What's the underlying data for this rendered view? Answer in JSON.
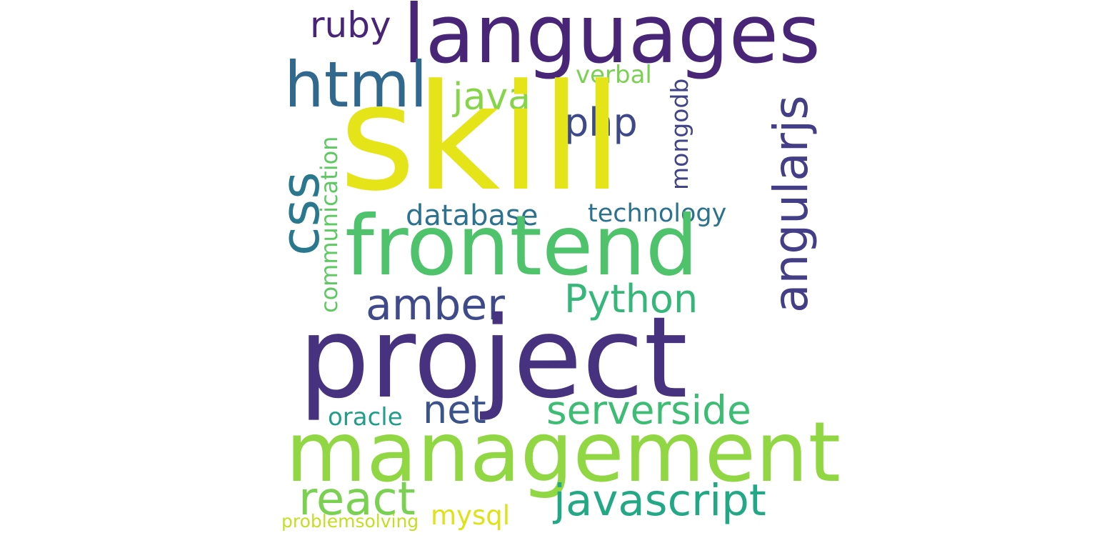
{
  "words": {
    "skill": {
      "text": "skill",
      "color": "#e5e419",
      "orientation": "horizontal"
    },
    "languages": {
      "text": "languages",
      "color": "#482576",
      "orientation": "horizontal"
    },
    "ruby": {
      "text": "ruby",
      "color": "#482576",
      "orientation": "horizontal"
    },
    "html": {
      "text": "html",
      "color": "#31688e",
      "orientation": "horizontal"
    },
    "verbal": {
      "text": "verbal",
      "color": "#7ad151",
      "orientation": "horizontal"
    },
    "java": {
      "text": "java",
      "color": "#86d549",
      "orientation": "horizontal"
    },
    "php": {
      "text": "php",
      "color": "#3e4989",
      "orientation": "horizontal"
    },
    "mongodb": {
      "text": "mongodb",
      "color": "#414487",
      "orientation": "vertical"
    },
    "angularjs": {
      "text": "angularjs",
      "color": "#433e85",
      "orientation": "vertical"
    },
    "css": {
      "text": "css",
      "color": "#2a788e",
      "orientation": "vertical"
    },
    "communication": {
      "text": "communication",
      "color": "#5ec962",
      "orientation": "vertical"
    },
    "database": {
      "text": "database",
      "color": "#2c728e",
      "orientation": "horizontal"
    },
    "technology": {
      "text": "technology",
      "color": "#2c728e",
      "orientation": "horizontal"
    },
    "frontend": {
      "text": "frontend",
      "color": "#4ec36b",
      "orientation": "horizontal"
    },
    "amber": {
      "text": "amber",
      "color": "#3e4a89",
      "orientation": "horizontal"
    },
    "Python": {
      "text": "Python",
      "color": "#35b779",
      "orientation": "horizontal"
    },
    "project": {
      "text": "project",
      "color": "#46327e",
      "orientation": "horizontal"
    },
    "net": {
      "text": "net",
      "color": "#3b528b",
      "orientation": "horizontal"
    },
    "oracle": {
      "text": "oracle",
      "color": "#1f9e89",
      "orientation": "horizontal"
    },
    "serverside": {
      "text": "serverside",
      "color": "#3dbc74",
      "orientation": "horizontal"
    },
    "management": {
      "text": "management",
      "color": "#90d743",
      "orientation": "horizontal"
    },
    "react": {
      "text": "react",
      "color": "#7ad151",
      "orientation": "horizontal"
    },
    "javascript": {
      "text": "javascript",
      "color": "#22a884",
      "orientation": "horizontal"
    },
    "mysql": {
      "text": "mysql",
      "color": "#dde318",
      "orientation": "horizontal"
    },
    "problemsolving": {
      "text": "problemsolving",
      "color": "#c2df23",
      "orientation": "horizontal"
    }
  }
}
